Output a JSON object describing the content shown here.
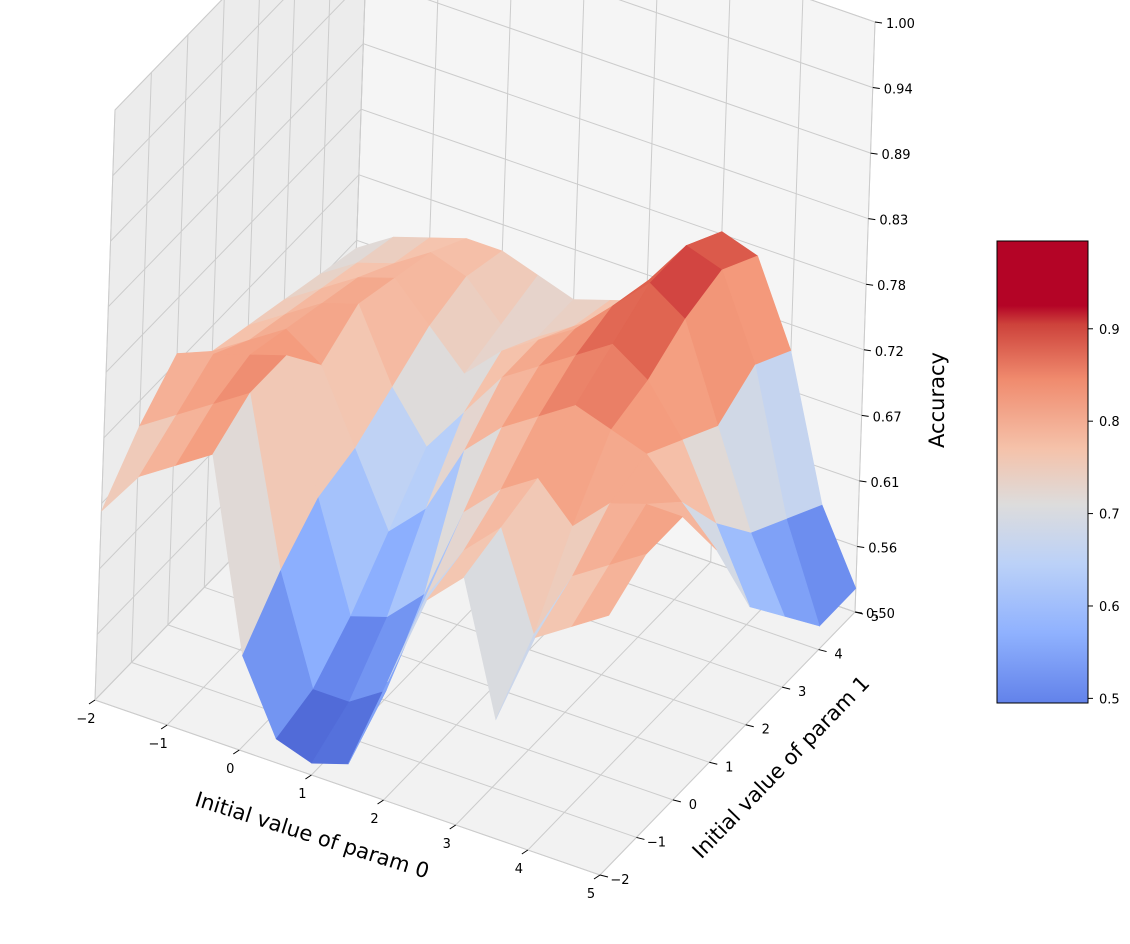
{
  "chart_data": {
    "type": "surface3d",
    "title": "",
    "xlabel": "Initial value of param 0",
    "ylabel": "Initial value of param 1",
    "zlabel": "Accuracy",
    "x_range": [
      -2,
      5
    ],
    "y_range": [
      -2,
      5
    ],
    "z_range": [
      0.5,
      1.0
    ],
    "x_ticks": [
      "−2",
      "−1",
      "0",
      "1",
      "2",
      "3",
      "4",
      "5"
    ],
    "y_ticks": [
      "−2",
      "−1",
      "0",
      "1",
      "2",
      "3",
      "4",
      "5"
    ],
    "z_ticks": [
      "0.50",
      "0.56",
      "0.61",
      "0.67",
      "0.72",
      "0.78",
      "0.83",
      "0.89",
      "0.94",
      "1.00"
    ],
    "colormap": "coolwarm",
    "colorbar": {
      "ticks": [
        "0.5",
        "0.6",
        "0.7",
        "0.8",
        "0.9"
      ],
      "range": [
        0.495,
        0.995
      ],
      "saturated_above": 0.815
    },
    "y_values": [
      -2,
      -1,
      0,
      1,
      2,
      3,
      4,
      5
    ],
    "rows": [
      {
        "y": -2,
        "x": [
          -2,
          -1.5,
          -1,
          -0.5,
          0,
          0.5,
          1,
          1.5,
          2,
          2.5,
          3,
          3.5,
          4,
          4.5,
          5
        ],
        "z": [
          0.66,
          0.7,
          0.72,
          0.74,
          0.58,
          0.52,
          0.51,
          0.52,
          0.6,
          0.68,
          0.71,
          0.6,
          0.68,
          0.7,
          0.72
        ]
      },
      {
        "y": -1,
        "x": [
          -2,
          -1.5,
          -1,
          -0.5,
          0,
          0.5,
          1,
          1.5,
          2,
          2.5,
          3,
          3.5,
          4,
          4.5,
          5
        ],
        "z": [
          0.7,
          0.72,
          0.74,
          0.76,
          0.62,
          0.53,
          0.53,
          0.55,
          0.64,
          0.69,
          0.72,
          0.64,
          0.7,
          0.72,
          0.74
        ]
      },
      {
        "y": 0,
        "x": [
          -2,
          -1.5,
          -1,
          -0.5,
          0,
          0.5,
          1,
          1.5,
          2,
          2.5,
          3,
          3.5,
          4,
          4.5,
          5
        ],
        "z": [
          0.73,
          0.74,
          0.75,
          0.76,
          0.65,
          0.56,
          0.57,
          0.6,
          0.68,
          0.71,
          0.73,
          0.7,
          0.73,
          0.74,
          0.74
        ]
      },
      {
        "y": 1,
        "x": [
          -2,
          -1.5,
          -1,
          -0.5,
          0,
          0.5,
          1,
          1.5,
          2,
          2.5,
          3,
          3.5,
          4,
          4.5,
          5
        ],
        "z": [
          0.7,
          0.72,
          0.74,
          0.72,
          0.66,
          0.6,
          0.63,
          0.69,
          0.72,
          0.74,
          0.76,
          0.75,
          0.74,
          0.71,
          0.68
        ]
      },
      {
        "y": 2,
        "x": [
          -2,
          -1.5,
          -1,
          -0.5,
          0,
          0.5,
          1,
          1.5,
          2,
          2.5,
          3,
          3.5,
          4,
          4.5,
          5
        ],
        "z": [
          0.69,
          0.71,
          0.73,
          0.74,
          0.68,
          0.64,
          0.68,
          0.72,
          0.74,
          0.76,
          0.78,
          0.76,
          0.72,
          0.66,
          0.6
        ]
      },
      {
        "y": 3,
        "x": [
          -2,
          -1.5,
          -1,
          -0.5,
          0,
          0.5,
          1,
          1.5,
          2,
          2.5,
          3,
          3.5,
          4,
          4.5,
          5
        ],
        "z": [
          0.68,
          0.7,
          0.72,
          0.73,
          0.7,
          0.67,
          0.7,
          0.72,
          0.74,
          0.77,
          0.8,
          0.78,
          0.7,
          0.62,
          0.56
        ]
      },
      {
        "y": 4,
        "x": [
          -2,
          -1.5,
          -1,
          -0.5,
          0,
          0.5,
          1,
          1.5,
          2,
          2.5,
          3,
          3.5,
          4,
          4.5,
          5
        ],
        "z": [
          0.67,
          0.69,
          0.7,
          0.72,
          0.71,
          0.68,
          0.68,
          0.7,
          0.72,
          0.76,
          0.8,
          0.79,
          0.72,
          0.6,
          0.52
        ]
      },
      {
        "y": 5,
        "x": [
          -2,
          -1.5,
          -1,
          -0.5,
          0,
          0.5,
          1,
          1.5,
          2,
          2.5,
          3,
          3.5,
          4,
          4.5,
          5
        ],
        "z": [
          0.66,
          0.68,
          0.69,
          0.7,
          0.7,
          0.69,
          0.68,
          0.69,
          0.7,
          0.74,
          0.78,
          0.77,
          0.7,
          0.58,
          0.52
        ]
      }
    ]
  }
}
